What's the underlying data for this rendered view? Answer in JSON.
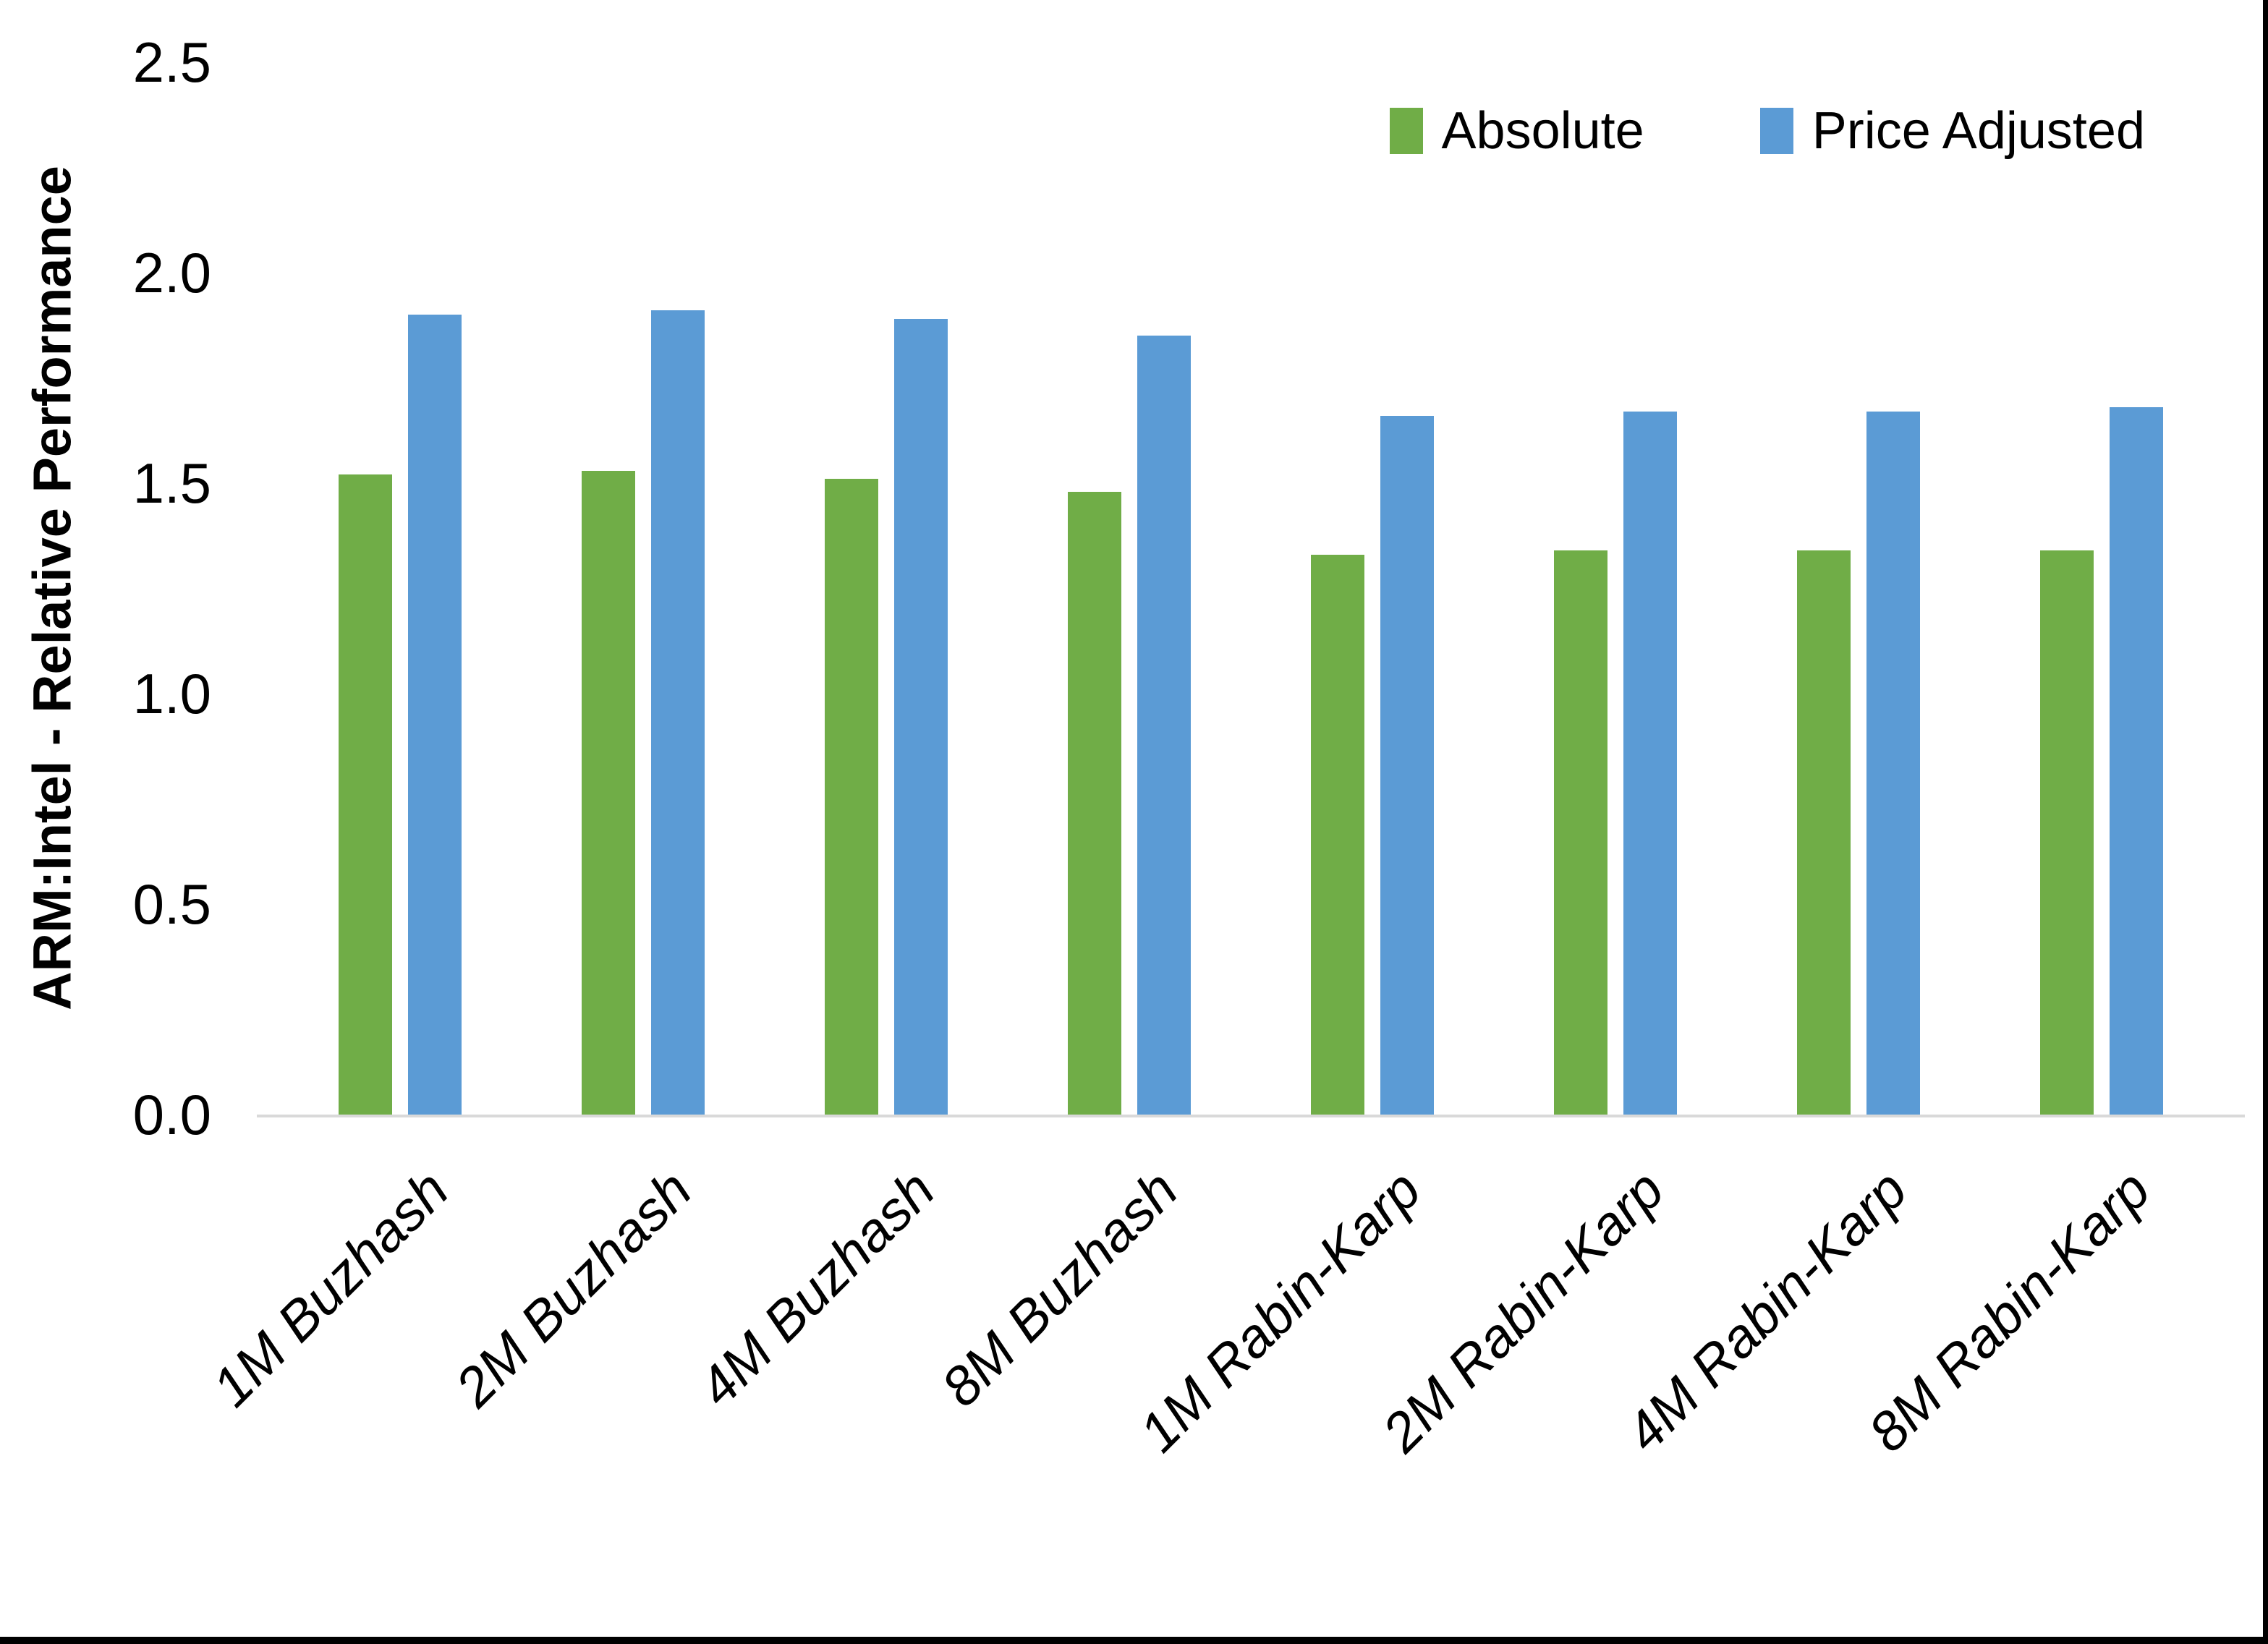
{
  "chart_data": {
    "type": "bar",
    "title": "",
    "xlabel": "",
    "ylabel": "ARM:Intel - Relative Performance",
    "categories": [
      "1M Buzhash",
      "2M Buzhash",
      "4M Buzhash",
      "8M Buzhash",
      "1M Rabin-Karp",
      "2M Rabin-Karp",
      "4M Rabin-Karp",
      "8M Rabin-Karp"
    ],
    "series": [
      {
        "name": "Absolute",
        "color": "#70AD47",
        "values": [
          1.52,
          1.53,
          1.51,
          1.48,
          1.33,
          1.34,
          1.34,
          1.34
        ]
      },
      {
        "name": "Price Adjusted",
        "color": "#5B9BD5",
        "values": [
          1.9,
          1.91,
          1.89,
          1.85,
          1.66,
          1.67,
          1.67,
          1.68
        ]
      }
    ],
    "ylim": [
      0,
      2.5
    ],
    "yticks": [
      "0.0",
      "0.5",
      "1.0",
      "1.5",
      "2.0",
      "2.5"
    ],
    "grid": false,
    "legend_position": "top-right",
    "colors": {
      "background": "#ffffff",
      "axis_line": "#d9d9d9",
      "text": "#000000",
      "frame_border": "#000000"
    }
  }
}
